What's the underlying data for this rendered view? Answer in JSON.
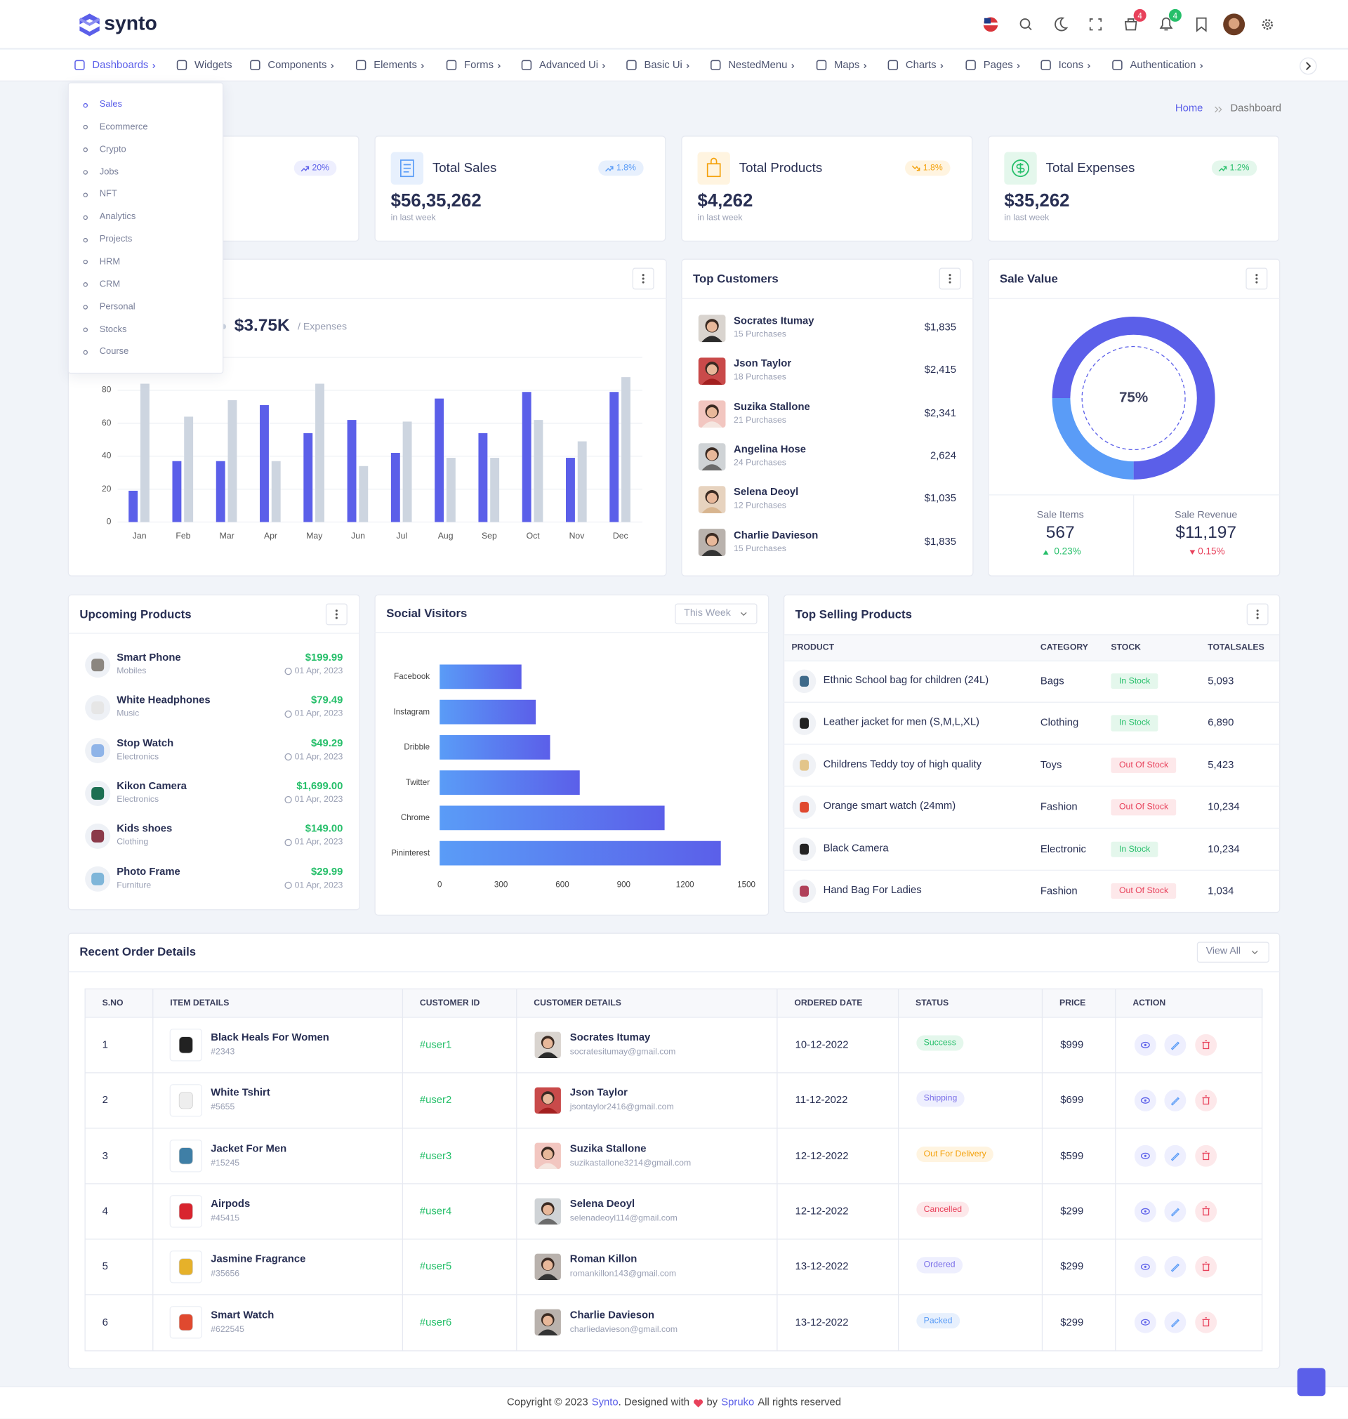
{
  "header": {
    "brand": "synto",
    "badges": [
      4,
      4
    ]
  },
  "nav": [
    "Dashboards",
    "Widgets",
    "Components",
    "Elements",
    "Forms",
    "Advanced Ui",
    "Basic Ui",
    "NestedMenu",
    "Maps",
    "Charts",
    "Pages",
    "Icons",
    "Authentication"
  ],
  "dashboard_menu": [
    "Sales",
    "Ecommerce",
    "Crypto",
    "Jobs",
    "NFT",
    "Analytics",
    "Projects",
    "HRM",
    "CRM",
    "Personal",
    "Stocks",
    "Course"
  ],
  "breadcrumb": [
    "Home",
    "Dashboard"
  ],
  "stats": [
    {
      "change": "20%"
    },
    {
      "title": "Total Sales",
      "change": "1.8%",
      "value": "$56,35,262",
      "note": "in last week"
    },
    {
      "title": "Total Products",
      "change": "1.8%",
      "value": "$4,262",
      "note": "in last week"
    },
    {
      "title": "Total Expenses",
      "change": "1.2%",
      "value": "$35,262",
      "note": "in last week"
    }
  ],
  "revenue": {
    "amount": "$3.75K",
    "note": "/ Expenses"
  },
  "top_customers": {
    "title": "Top Customers",
    "rows": [
      {
        "name": "Socrates Itumay",
        "purchases": "15 Purchases",
        "amount": "$1,835"
      },
      {
        "name": "Json Taylor",
        "purchases": "18 Purchases",
        "amount": "$2,415"
      },
      {
        "name": "Suzika Stallone",
        "purchases": "21 Purchases",
        "amount": "$2,341"
      },
      {
        "name": "Angelina Hose",
        "purchases": "24 Purchases",
        "amount": "2,624"
      },
      {
        "name": "Selena Deoyl",
        "purchases": "12 Purchases",
        "amount": "$1,035"
      },
      {
        "name": "Charlie Davieson",
        "purchases": "15 Purchases",
        "amount": "$1,835"
      }
    ]
  },
  "sale_value": {
    "title": "Sale Value",
    "items_label": "Sale Items",
    "items": 567,
    "items_change": "0.23%",
    "revenue_label": "Sale Revenue",
    "revenue": "$11,197",
    "revenue_change": "0.15%"
  },
  "upcoming": {
    "title": "Upcoming Products",
    "rows": [
      {
        "name": "Smart Phone",
        "category": "Mobiles",
        "price": "$199.99",
        "date": "01 Apr, 2023"
      },
      {
        "name": "White Headphones",
        "category": "Music",
        "price": "$79.49",
        "date": "01 Apr, 2023"
      },
      {
        "name": "Stop Watch",
        "category": "Electronics",
        "price": "$49.29",
        "date": "01 Apr, 2023"
      },
      {
        "name": "Kikon Camera",
        "category": "Electronics",
        "price": "$1,699.00",
        "date": "01 Apr, 2023"
      },
      {
        "name": "Kids shoes",
        "category": "Clothing",
        "price": "$149.00",
        "date": "01 Apr, 2023"
      },
      {
        "name": "Photo Frame",
        "category": "Furniture",
        "price": "$29.99",
        "date": "01 Apr, 2023"
      }
    ]
  },
  "social": {
    "filter": "This Week"
  },
  "top_selling": {
    "title": "Top Selling Products",
    "columns": [
      "PRODUCT",
      "CATEGORY",
      "STOCK",
      "TOTALSALES"
    ],
    "rows": [
      [
        "Ethnic School bag for children (24L)",
        "Bags",
        "In Stock",
        "5,093"
      ],
      [
        "Leather jacket for men (S,M,L,XL)",
        "Clothing",
        "In Stock",
        "6,890"
      ],
      [
        "Childrens Teddy toy of high quality",
        "Toys",
        "Out Of Stock",
        "5,423"
      ],
      [
        "Orange smart watch (24mm)",
        "Fashion",
        "Out Of Stock",
        "10,234"
      ],
      [
        "Black Camera",
        "Electronic",
        "In Stock",
        "10,234"
      ],
      [
        "Hand Bag For Ladies",
        "Fashion",
        "Out Of Stock",
        "1,034"
      ]
    ]
  },
  "orders": {
    "title": "Recent Order Details",
    "button": "View All",
    "columns": [
      "S.NO",
      "ITEM DETAILS",
      "CUSTOMER ID",
      "CUSTOMER DETAILS",
      "ORDERED DATE",
      "STATUS",
      "PRICE",
      "ACTION"
    ],
    "rows": [
      {
        "no": 1,
        "item": "Black Heals For Women",
        "code": "#2343",
        "customer_id": "#user1",
        "customer": "Socrates Itumay",
        "email": "socratesitumay@gmail.com",
        "date": "10-12-2022",
        "status": "Success",
        "price": "$999"
      },
      {
        "no": 2,
        "item": "White Tshirt",
        "code": "#5655",
        "customer_id": "#user2",
        "customer": "Json Taylor",
        "email": "jsontaylor2416@gmail.com",
        "date": "11-12-2022",
        "status": "Shipping",
        "price": "$699"
      },
      {
        "no": 3,
        "item": "Jacket For Men",
        "code": "#15245",
        "customer_id": "#user3",
        "customer": "Suzika Stallone",
        "email": "suzikastallone3214@gmail.com",
        "date": "12-12-2022",
        "status": "Out For Delivery",
        "price": "$599"
      },
      {
        "no": 4,
        "item": "Airpods",
        "code": "#45415",
        "customer_id": "#user4",
        "customer": "Selena Deoyl",
        "email": "selenadeoyl114@gmail.com",
        "date": "12-12-2022",
        "status": "Cancelled",
        "price": "$299"
      },
      {
        "no": 5,
        "item": "Jasmine Fragrance",
        "code": "#35656",
        "customer_id": "#user5",
        "customer": "Roman Killon",
        "email": "romankillon143@gmail.com",
        "date": "13-12-2022",
        "status": "Ordered",
        "price": "$299"
      },
      {
        "no": 6,
        "item": "Smart Watch",
        "code": "#622545",
        "customer_id": "#user6",
        "customer": "Charlie Davieson",
        "email": "charliedavieson@gmail.com",
        "date": "13-12-2022",
        "status": "Packed",
        "price": "$299"
      }
    ]
  },
  "footer": {
    "copyright": "Copyright © 2023",
    "brand": "Synto",
    "designed": ". Designed with",
    "by": "by",
    "company": "Spruko",
    "rights": "All rights reserved"
  },
  "chart_data": [
    {
      "type": "bar",
      "categories": [
        "Jan",
        "Feb",
        "Mar",
        "Apr",
        "May",
        "Jun",
        "Jul",
        "Aug",
        "Sep",
        "Oct",
        "Nov",
        "Dec"
      ],
      "series": [
        {
          "color": "#5b5fe9",
          "values": [
            19,
            37,
            37,
            71,
            54,
            62,
            42,
            75,
            54,
            79,
            39,
            79
          ]
        },
        {
          "color": "#cdd5e0",
          "values": [
            84,
            64,
            74,
            37,
            84,
            34,
            61,
            39,
            39,
            62,
            49,
            88
          ]
        }
      ],
      "ylim": [
        0,
        100
      ],
      "yticks": [
        0,
        20,
        40,
        60,
        80
      ],
      "grid": true
    },
    {
      "type": "hbar",
      "title": "Social Visitors",
      "categories": [
        "Facebook",
        "Instagram",
        "Dribble",
        "Twitter",
        "Chrome",
        "Pininterest"
      ],
      "values": [
        400,
        470,
        540,
        685,
        1100,
        1375
      ],
      "colors": [
        "#5a9cf7",
        "#5b5fe9"
      ],
      "xlim": [
        0,
        1500
      ],
      "xticks": [
        0,
        300,
        600,
        900,
        1200,
        1500
      ]
    },
    {
      "type": "pie",
      "categories": [
        null,
        null
      ],
      "values": [
        75,
        25
      ],
      "value_labels": [
        "75%",
        null
      ],
      "colors": [
        "#5b5fe9",
        "#5a9cf7"
      ]
    }
  ]
}
